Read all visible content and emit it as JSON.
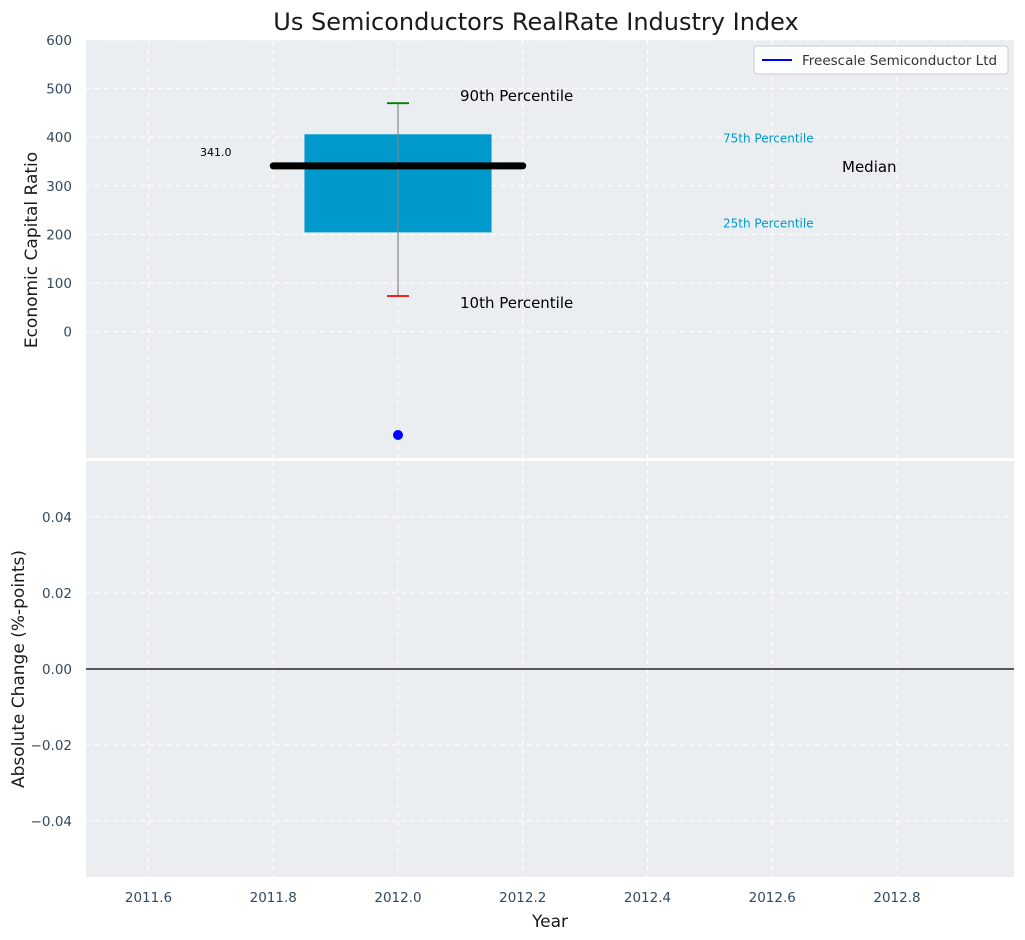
{
  "chart_data": {
    "title": "Us Semiconductors RealRate Industry Index",
    "type": "box",
    "xlabel": "Year",
    "colors": {
      "plot_bg": "#eaeef0",
      "box": "#0099cc",
      "median": "#000000",
      "p90_cap": "#008000",
      "p10_cap": "#ff0000",
      "whisker": "#888888",
      "company": "#0000ff",
      "small_label": "#0099cc"
    },
    "x_ticks": [
      "2011.6",
      "2011.8",
      "2012.0",
      "2012.2",
      "2012.4",
      "2012.6",
      "2012.8"
    ],
    "top": {
      "ylabel": "Economic Capital Ratio",
      "ylim": [
        -260,
        600
      ],
      "y_ticks": [
        "600",
        "500",
        "400",
        "300",
        "200",
        "100",
        "0"
      ],
      "grid": true,
      "box": {
        "x": 2012.0,
        "p10": 73,
        "p25": 204,
        "median": 341,
        "p75": 406,
        "p90": 470
      },
      "median_label": "341.0",
      "company_point": {
        "x": 2012.0,
        "y": -213
      },
      "annotations": {
        "p90": "90th Percentile",
        "p10": "10th Percentile",
        "p75": "75th Percentile",
        "p25": "25th Percentile",
        "median": "Median"
      },
      "legend": {
        "position": "top-right",
        "entry": "Freescale Semiconductor Ltd"
      }
    },
    "bottom": {
      "ylabel": "Absolute Change (%-points)",
      "ylim": [
        -0.055,
        0.055
      ],
      "y_ticks": [
        "0.04",
        "0.02",
        "0.00",
        "−0.02",
        "−0.04"
      ],
      "grid": true,
      "zero_line": 0
    }
  }
}
